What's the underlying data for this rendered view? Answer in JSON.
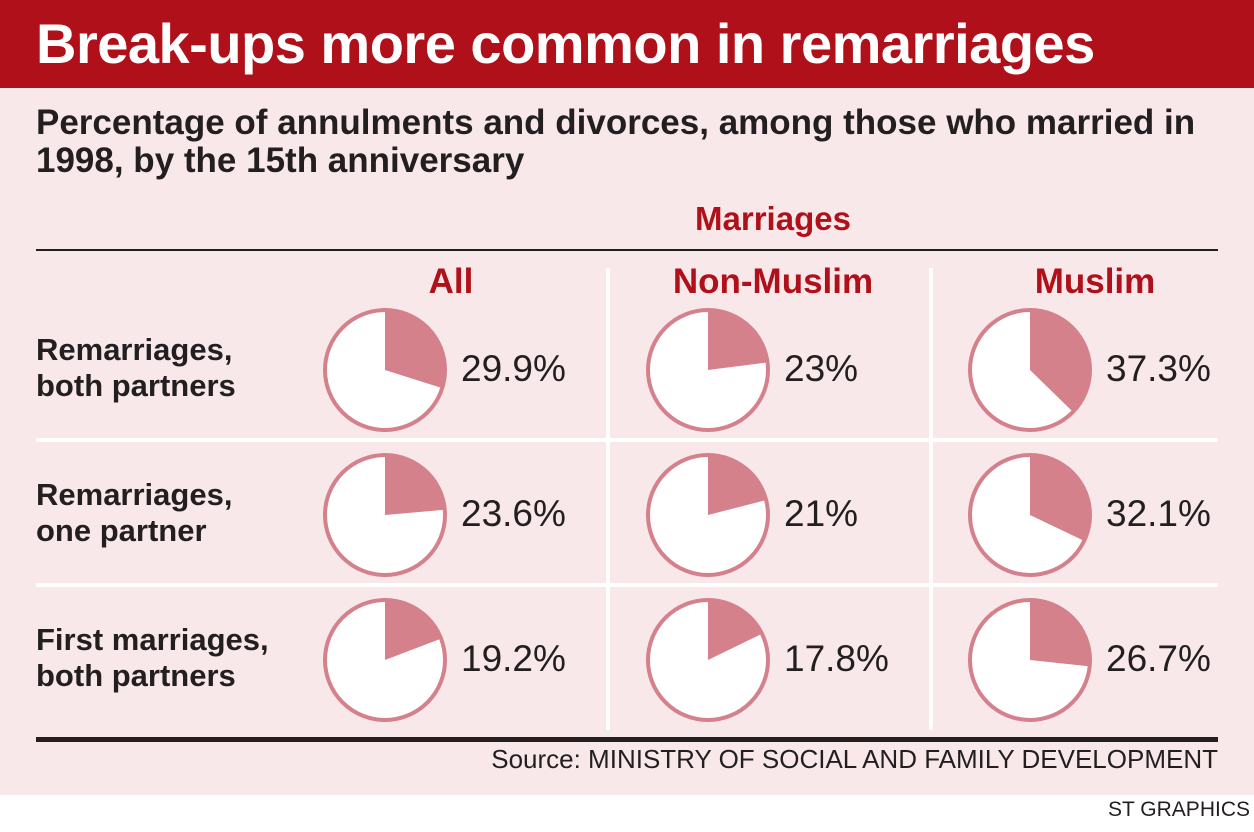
{
  "chart_data": {
    "type": "pie",
    "title": "Break-ups more common in remarriages",
    "subtitle": "Percentage of annulments and divorces, among those who married in 1998, by the 15th anniversary",
    "group_label": "Marriages",
    "columns": [
      "All",
      "Non-Muslim",
      "Muslim"
    ],
    "rows": [
      {
        "label_lines": [
          "Remarriages,",
          "both partners"
        ],
        "values": [
          29.9,
          23,
          37.3
        ],
        "labels": [
          "29.9%",
          "23%",
          "37.3%"
        ]
      },
      {
        "label_lines": [
          "Remarriages,",
          "one partner"
        ],
        "values": [
          23.6,
          21,
          32.1
        ],
        "labels": [
          "23.6%",
          "21%",
          "32.1%"
        ]
      },
      {
        "label_lines": [
          "First marriages,",
          "both partners"
        ],
        "values": [
          19.2,
          17.8,
          26.7
        ],
        "labels": [
          "19.2%",
          "17.8%",
          "26.7%"
        ]
      }
    ],
    "colors": {
      "slice": "#d4818c",
      "remainder": "#ffffff",
      "accent": "#b01019",
      "background": "#f8e8ea"
    }
  },
  "source": "Source: MINISTRY OF SOCIAL AND FAMILY DEVELOPMENT",
  "credit": "ST GRAPHICS"
}
